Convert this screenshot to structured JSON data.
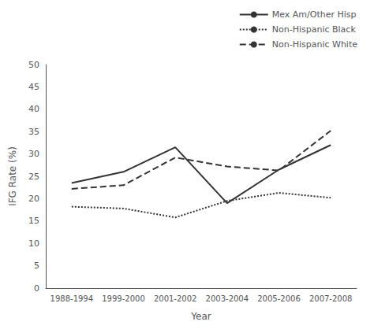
{
  "chart_data": {
    "type": "line",
    "categories": [
      "1988-1994",
      "1999-2000",
      "2001-2002",
      "2003-2004",
      "2005-2006",
      "2007-2008"
    ],
    "series": [
      {
        "name": "Mex Am/Other Hisp",
        "values": [
          23.5,
          26.0,
          31.5,
          19.0,
          26.5,
          32.0
        ],
        "color": "#333333",
        "line_style": "solid"
      },
      {
        "name": "Non-Hispanic Black",
        "values": [
          18.2,
          17.8,
          15.8,
          19.5,
          21.3,
          20.2
        ],
        "color": "#333333",
        "line_style": "dotted"
      },
      {
        "name": "Non-Hispanic White",
        "values": [
          22.2,
          23.0,
          29.2,
          27.2,
          26.3,
          35.2
        ],
        "color": "#333333",
        "line_style": "dashed"
      }
    ],
    "x_label": "Year",
    "y_label": "IFG Rate (%)",
    "ylim": [
      0,
      50
    ],
    "yticks": [
      0,
      5,
      10,
      15,
      20,
      25,
      30,
      35,
      40,
      45,
      50
    ],
    "legend": "upper right",
    "grid": false
  }
}
